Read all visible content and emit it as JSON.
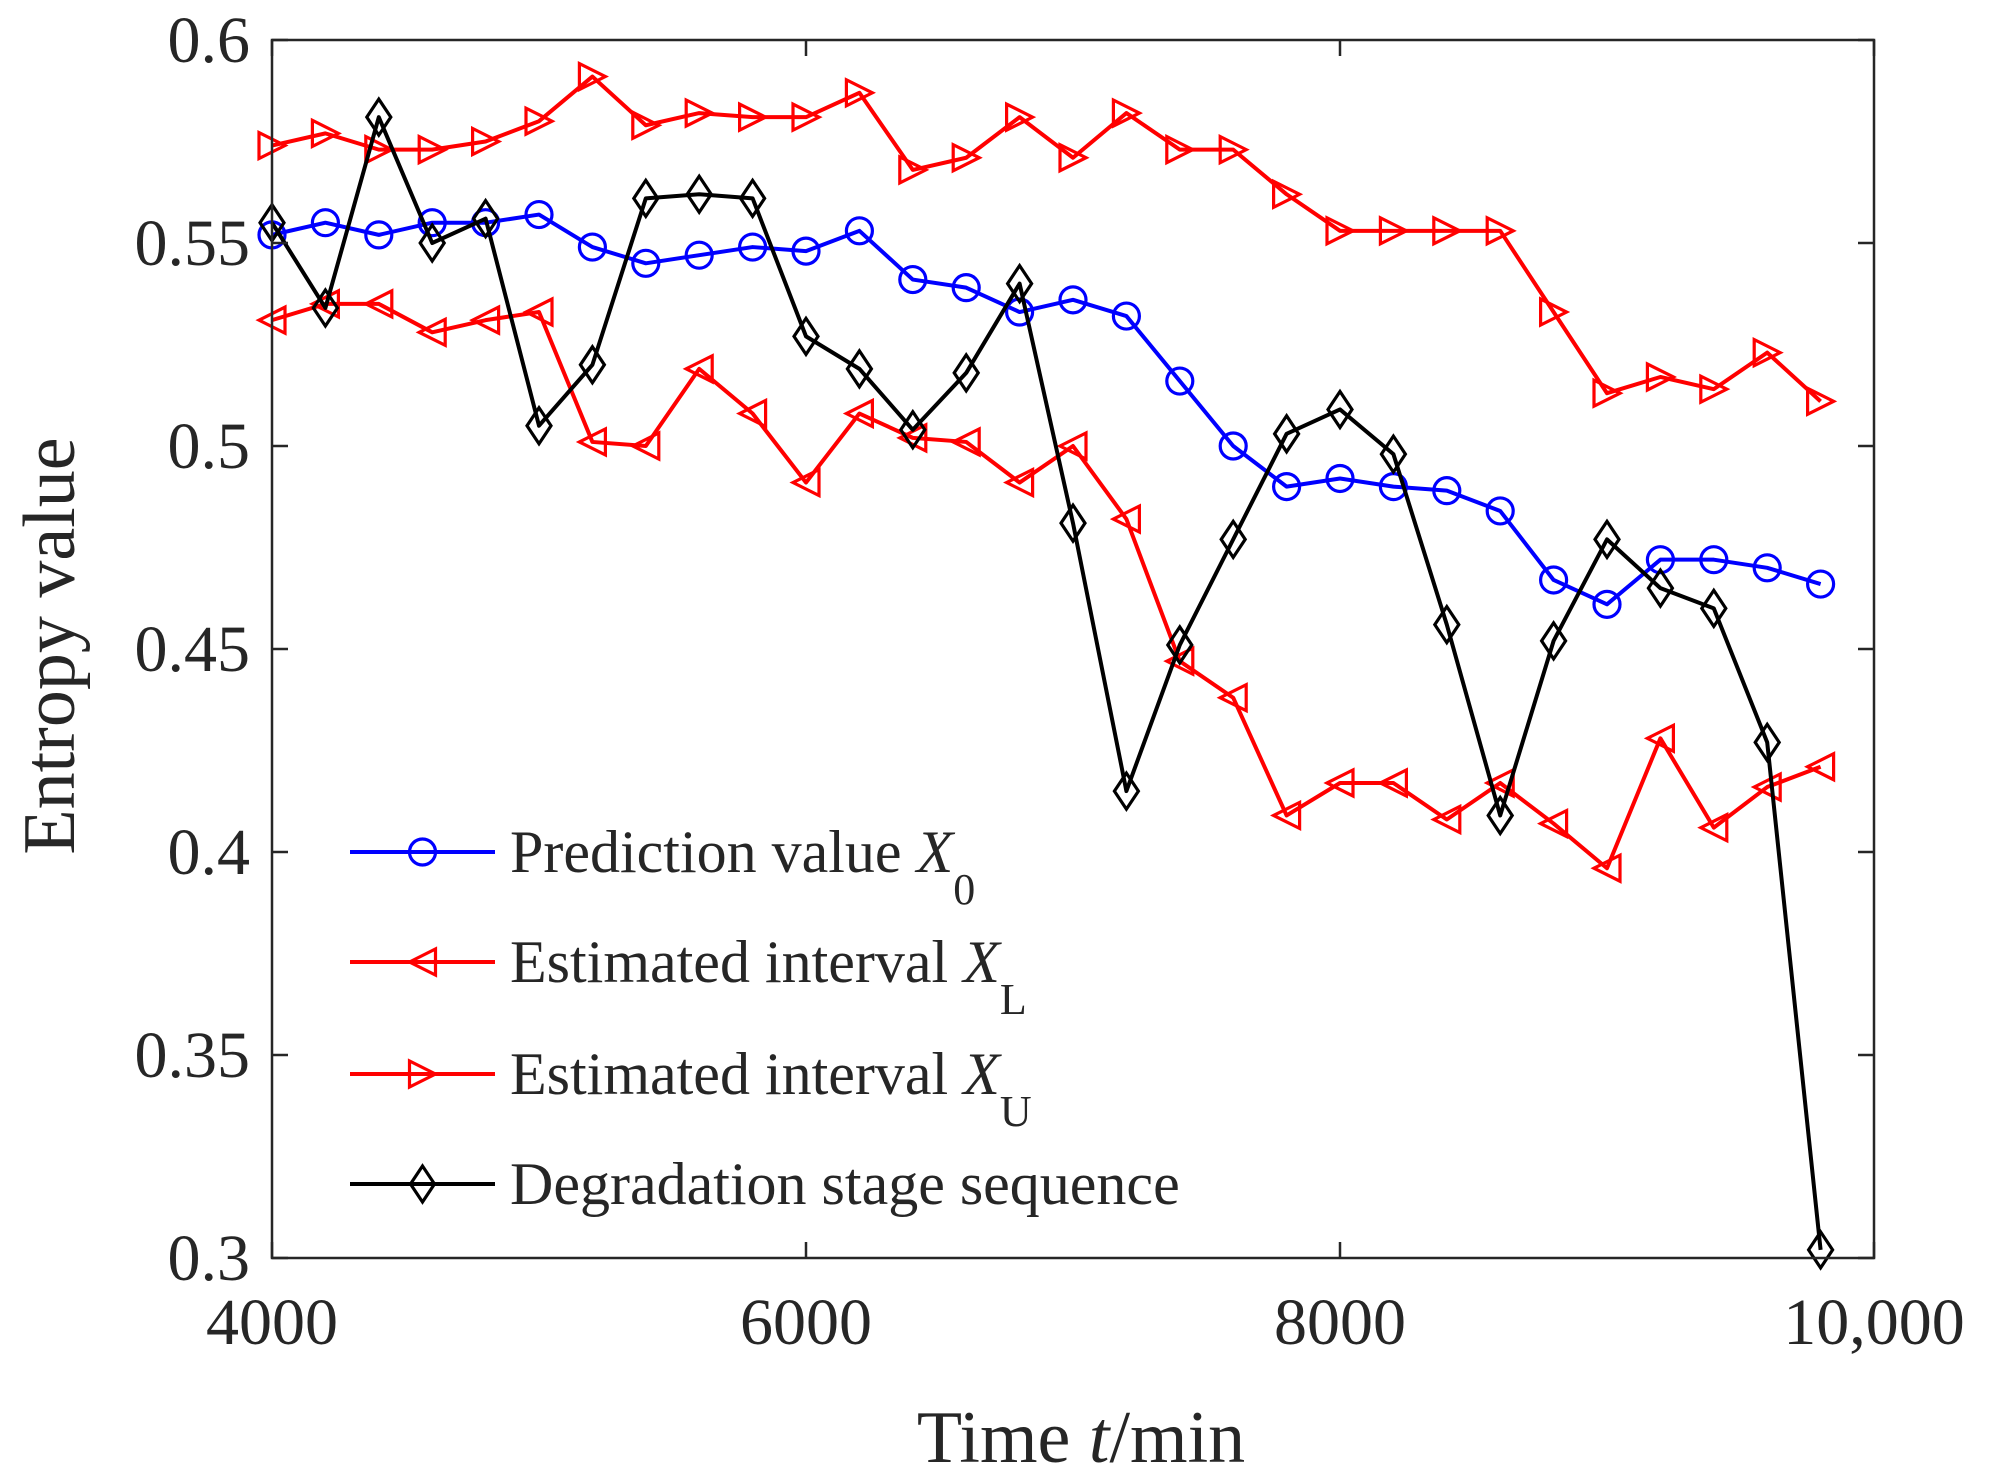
{
  "chart_data": {
    "type": "line",
    "title": "",
    "xlabel": "Time t/min",
    "xlabel_parts": {
      "prefix": "Time ",
      "var": "t",
      "suffix": "/min"
    },
    "ylabel": "Entropy value",
    "xlim": [
      4000,
      10000
    ],
    "ylim": [
      0.3,
      0.6
    ],
    "x_ticks": [
      4000,
      6000,
      8000,
      10000
    ],
    "x_tick_labels": [
      "4000",
      "6000",
      "8000",
      "10,000"
    ],
    "y_ticks": [
      0.3,
      0.35,
      0.4,
      0.45,
      0.5,
      0.55,
      0.6
    ],
    "y_tick_labels": [
      "0.3",
      "0.35",
      "0.4",
      "0.45",
      "0.5",
      "0.55",
      "0.6"
    ],
    "grid": false,
    "legend_position": "bottom-left",
    "series": [
      {
        "name": "Prediction value X0",
        "legend_label": {
          "text": "Prediction value ",
          "var": "X",
          "sub": "0"
        },
        "color": "#0000ff",
        "marker": "circle",
        "x": [
          4000,
          4200,
          4400,
          4600,
          4800,
          5000,
          5200,
          5400,
          5600,
          5800,
          6000,
          6200,
          6400,
          6600,
          6800,
          7000,
          7200,
          7400,
          7600,
          7800,
          8000,
          8200,
          8400,
          8600,
          8800,
          9000,
          9200,
          9400,
          9600,
          9800
        ],
        "values": [
          0.552,
          0.555,
          0.552,
          0.555,
          0.555,
          0.557,
          0.549,
          0.545,
          0.547,
          0.549,
          0.548,
          0.553,
          0.541,
          0.539,
          0.533,
          0.536,
          0.532,
          0.516,
          0.5,
          0.49,
          0.492,
          0.49,
          0.489,
          0.484,
          0.467,
          0.461,
          0.472,
          0.472,
          0.47,
          0.466
        ]
      },
      {
        "name": "Estimated interval XL",
        "legend_label": {
          "text": "Estimated interval ",
          "var": "X",
          "sub": "L"
        },
        "color": "#ff0000",
        "marker": "triangle-left",
        "x": [
          4000,
          4200,
          4400,
          4600,
          4800,
          5000,
          5200,
          5400,
          5600,
          5800,
          6000,
          6200,
          6400,
          6600,
          6800,
          7000,
          7200,
          7400,
          7600,
          7800,
          8000,
          8200,
          8400,
          8600,
          8800,
          9000,
          9200,
          9400,
          9600,
          9800
        ],
        "values": [
          0.531,
          0.535,
          0.535,
          0.528,
          0.531,
          0.533,
          0.501,
          0.5,
          0.519,
          0.508,
          0.491,
          0.508,
          0.502,
          0.501,
          0.491,
          0.5,
          0.482,
          0.447,
          0.438,
          0.409,
          0.417,
          0.417,
          0.408,
          0.417,
          0.407,
          0.396,
          0.428,
          0.406,
          0.416,
          0.421
        ]
      },
      {
        "name": "Estimated interval XU",
        "legend_label": {
          "text": "Estimated interval ",
          "var": "X",
          "sub": "U"
        },
        "color": "#ff0000",
        "marker": "triangle-right",
        "x": [
          4000,
          4200,
          4400,
          4600,
          4800,
          5000,
          5200,
          5400,
          5600,
          5800,
          6000,
          6200,
          6400,
          6600,
          6800,
          7000,
          7200,
          7400,
          7600,
          7800,
          8000,
          8200,
          8400,
          8600,
          8800,
          9000,
          9200,
          9400,
          9600,
          9800
        ],
        "values": [
          0.574,
          0.577,
          0.573,
          0.573,
          0.575,
          0.58,
          0.591,
          0.579,
          0.582,
          0.581,
          0.581,
          0.587,
          0.568,
          0.571,
          0.581,
          0.571,
          0.582,
          0.573,
          0.573,
          0.562,
          0.553,
          0.553,
          0.553,
          0.553,
          0.533,
          0.513,
          0.517,
          0.514,
          0.523,
          0.511
        ]
      },
      {
        "name": "Degradation stage sequence",
        "legend_label": {
          "text": "Degradation stage sequence",
          "var": "",
          "sub": ""
        },
        "color": "#000000",
        "marker": "diamond",
        "x": [
          4000,
          4200,
          4400,
          4600,
          4800,
          5000,
          5200,
          5400,
          5600,
          5800,
          6000,
          6200,
          6400,
          6600,
          6800,
          7000,
          7200,
          7400,
          7600,
          7800,
          8000,
          8200,
          8400,
          8600,
          8800,
          9000,
          9200,
          9400,
          9600,
          9800
        ],
        "values": [
          0.555,
          0.534,
          0.581,
          0.55,
          0.556,
          0.505,
          0.52,
          0.561,
          0.562,
          0.561,
          0.527,
          0.519,
          0.504,
          0.518,
          0.54,
          0.481,
          0.415,
          0.451,
          0.477,
          0.503,
          0.509,
          0.498,
          0.456,
          0.409,
          0.452,
          0.477,
          0.465,
          0.46,
          0.427,
          0.302
        ]
      }
    ]
  }
}
